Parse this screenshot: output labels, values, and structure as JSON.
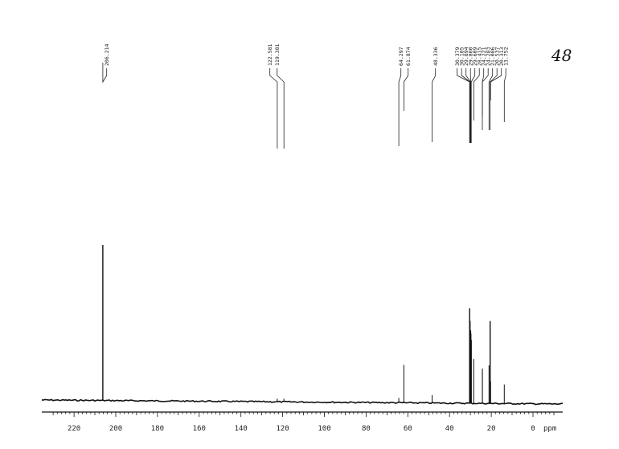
{
  "chart_data": {
    "type": "line",
    "title": "",
    "annotation": "48",
    "xlabel": "ppm",
    "ylabel": "",
    "xlim": [
      232,
      -8
    ],
    "x_reversed": true,
    "ylim": [
      0,
      100
    ],
    "grid": false,
    "x_ticks": [
      "220",
      "200",
      "180",
      "160",
      "140",
      "120",
      "100",
      "80",
      "60",
      "40",
      "20",
      "0"
    ],
    "peak_labels": [
      "206.214",
      "122.581",
      "119.381",
      "64.297",
      "61.874",
      "48.336",
      "30.379",
      "30.185",
      "29.894",
      "29.800",
      "29.609",
      "28.415",
      "24.221",
      "24.283",
      "21.086",
      "20.537",
      "20.313",
      "13.752"
    ],
    "peaks": [
      {
        "ppm": 206.214,
        "intensity": 100
      },
      {
        "ppm": 122.581,
        "intensity": 2
      },
      {
        "ppm": 119.381,
        "intensity": 2
      },
      {
        "ppm": 64.297,
        "intensity": 3
      },
      {
        "ppm": 61.874,
        "intensity": 24
      },
      {
        "ppm": 48.336,
        "intensity": 5
      },
      {
        "ppm": 30.379,
        "intensity": 60
      },
      {
        "ppm": 30.185,
        "intensity": 52
      },
      {
        "ppm": 29.894,
        "intensity": 46
      },
      {
        "ppm": 29.8,
        "intensity": 44
      },
      {
        "ppm": 29.609,
        "intensity": 40
      },
      {
        "ppm": 28.415,
        "intensity": 28
      },
      {
        "ppm": 24.221,
        "intensity": 22
      },
      {
        "ppm": 24.283,
        "intensity": 20
      },
      {
        "ppm": 21.086,
        "intensity": 24
      },
      {
        "ppm": 20.537,
        "intensity": 52
      },
      {
        "ppm": 20.313,
        "intensity": 14
      },
      {
        "ppm": 13.752,
        "intensity": 12
      }
    ]
  }
}
